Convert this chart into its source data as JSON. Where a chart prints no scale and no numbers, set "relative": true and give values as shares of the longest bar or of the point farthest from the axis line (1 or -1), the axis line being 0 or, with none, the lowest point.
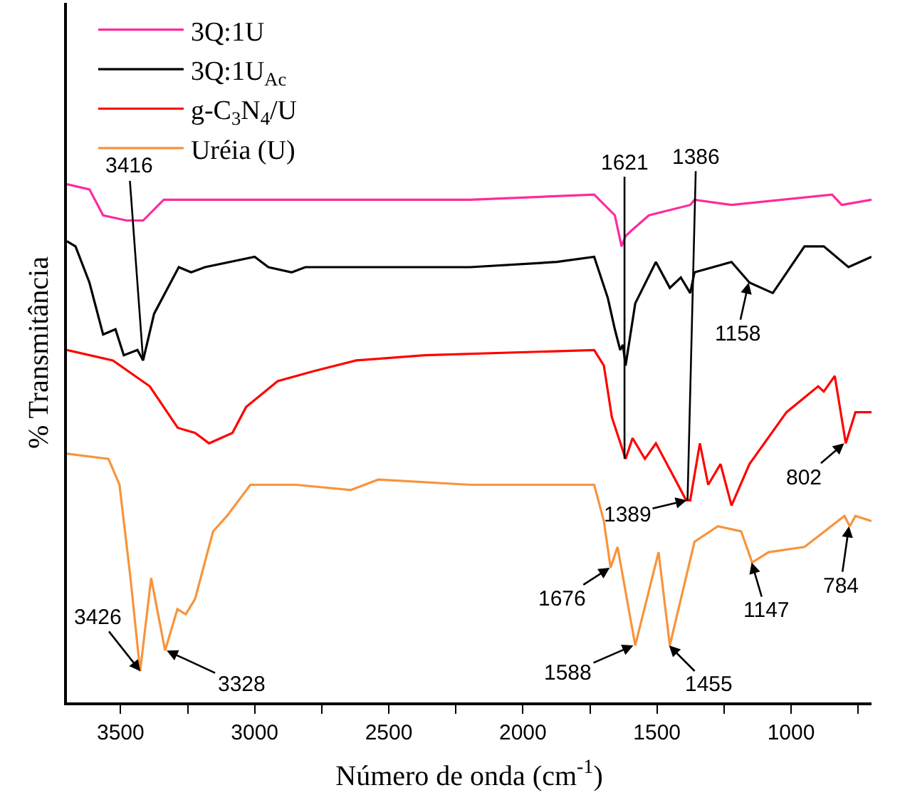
{
  "chart_data": {
    "type": "line",
    "relative": true,
    "xlabel": "Número de onda (cm$^{-1}$)",
    "ylabel": "% Transmitância",
    "xlim": [
      3700,
      700
    ],
    "xticks": [
      3500,
      {
        "value": 3250,
        "label": null
      },
      3000,
      {
        "value": 2750,
        "label": null
      },
      2500,
      {
        "value": 2250,
        "label": null
      },
      2000,
      {
        "value": 1750,
        "label": null
      },
      1500,
      {
        "value": 1250,
        "label": null
      },
      1000,
      {
        "value": 750,
        "label": null
      }
    ],
    "legend": "top left",
    "grid": false,
    "marker": "none",
    "line_style": "solid",
    "series": [
      {
        "name": "3Q:1U",
        "color": "#ff2a9d",
        "x": [
          3700,
          3616,
          3565,
          3478,
          3416,
          3339,
          3237,
          2913,
          2365,
          2196,
          1734,
          1657,
          1632,
          1617,
          1596,
          1530,
          1376,
          1360,
          1222,
          847,
          811,
          700
        ],
        "values": [
          1.0,
          0.99,
          0.94,
          0.93,
          0.93,
          0.97,
          0.97,
          0.97,
          0.97,
          0.97,
          0.98,
          0.94,
          0.88,
          0.9,
          0.91,
          0.94,
          0.96,
          0.97,
          0.96,
          0.98,
          0.96,
          0.97
        ]
      },
      {
        "name": "3Q:1U$_{Ac}$",
        "color": "#000000",
        "x": [
          3700,
          3668,
          3616,
          3565,
          3519,
          3488,
          3437,
          3416,
          3375,
          3283,
          3237,
          3185,
          3000,
          2949,
          2862,
          2811,
          2196,
          1873,
          1734,
          1683,
          1657,
          1637,
          1627,
          1617,
          1581,
          1504,
          1452,
          1411,
          1376,
          1360,
          1222,
          1155,
          1068,
          950,
          878,
          786,
          700
        ],
        "values": [
          0.89,
          0.88,
          0.81,
          0.71,
          0.72,
          0.67,
          0.68,
          0.66,
          0.75,
          0.84,
          0.83,
          0.84,
          0.86,
          0.84,
          0.83,
          0.84,
          0.84,
          0.85,
          0.86,
          0.78,
          0.72,
          0.68,
          0.69,
          0.65,
          0.77,
          0.85,
          0.8,
          0.82,
          0.79,
          0.83,
          0.85,
          0.81,
          0.79,
          0.88,
          0.88,
          0.84,
          0.86
        ]
      },
      {
        "name": "g-C$_{3}$N$_{4}$/U",
        "color": "#ff0000",
        "x": [
          3700,
          3529,
          3391,
          3287,
          3222,
          3170,
          3083,
          3032,
          2914,
          2775,
          2621,
          2365,
          1734,
          1698,
          1668,
          1617,
          1591,
          1545,
          1504,
          1442,
          1391,
          1376,
          1340,
          1309,
          1263,
          1222,
          1155,
          1017,
          899,
          878,
          837,
          796,
          760,
          700
        ],
        "values": [
          0.68,
          0.66,
          0.61,
          0.53,
          0.52,
          0.5,
          0.52,
          0.57,
          0.62,
          0.64,
          0.66,
          0.67,
          0.68,
          0.65,
          0.55,
          0.47,
          0.51,
          0.47,
          0.5,
          0.44,
          0.39,
          0.39,
          0.5,
          0.42,
          0.46,
          0.38,
          0.46,
          0.56,
          0.61,
          0.6,
          0.63,
          0.5,
          0.56,
          0.56
        ]
      },
      {
        "name": "Uréia (U)",
        "color": "#f7943c",
        "x": [
          3700,
          3545,
          3504,
          3463,
          3427,
          3386,
          3334,
          3288,
          3257,
          3222,
          3155,
          3103,
          3016,
          2949,
          2846,
          2641,
          2539,
          2196,
          1734,
          1698,
          1673,
          1647,
          1581,
          1494,
          1452,
          1360,
          1273,
          1186,
          1145,
          1084,
          950,
          801,
          781,
          760,
          700
        ],
        "values": [
          0.48,
          0.47,
          0.42,
          0.24,
          0.06,
          0.24,
          0.1,
          0.18,
          0.17,
          0.2,
          0.33,
          0.36,
          0.42,
          0.42,
          0.42,
          0.41,
          0.43,
          0.42,
          0.42,
          0.35,
          0.26,
          0.3,
          0.11,
          0.29,
          0.11,
          0.31,
          0.34,
          0.33,
          0.27,
          0.29,
          0.3,
          0.36,
          0.34,
          0.36,
          0.35
        ]
      }
    ],
    "annotations": [
      {
        "text": "3416",
        "x": 3416,
        "y": 0.66
      },
      {
        "text": "1621",
        "x": 1621,
        "y": 0.47
      },
      {
        "text": "1386",
        "x": 1386,
        "y": 0.39
      },
      {
        "text": "1158",
        "x": 1158,
        "y": 0.81
      },
      {
        "text": "802",
        "x": 802,
        "y": 0.5
      },
      {
        "text": "1389",
        "x": 1389,
        "y": 0.39
      },
      {
        "text": "1676",
        "x": 1676,
        "y": 0.26
      },
      {
        "text": "3426",
        "x": 3426,
        "y": 0.06
      },
      {
        "text": "3328",
        "x": 3328,
        "y": 0.1
      },
      {
        "text": "1588",
        "x": 1588,
        "y": 0.11
      },
      {
        "text": "1455",
        "x": 1455,
        "y": 0.11
      },
      {
        "text": "1147",
        "x": 1147,
        "y": 0.27
      },
      {
        "text": "784",
        "x": 784,
        "y": 0.34
      }
    ]
  }
}
